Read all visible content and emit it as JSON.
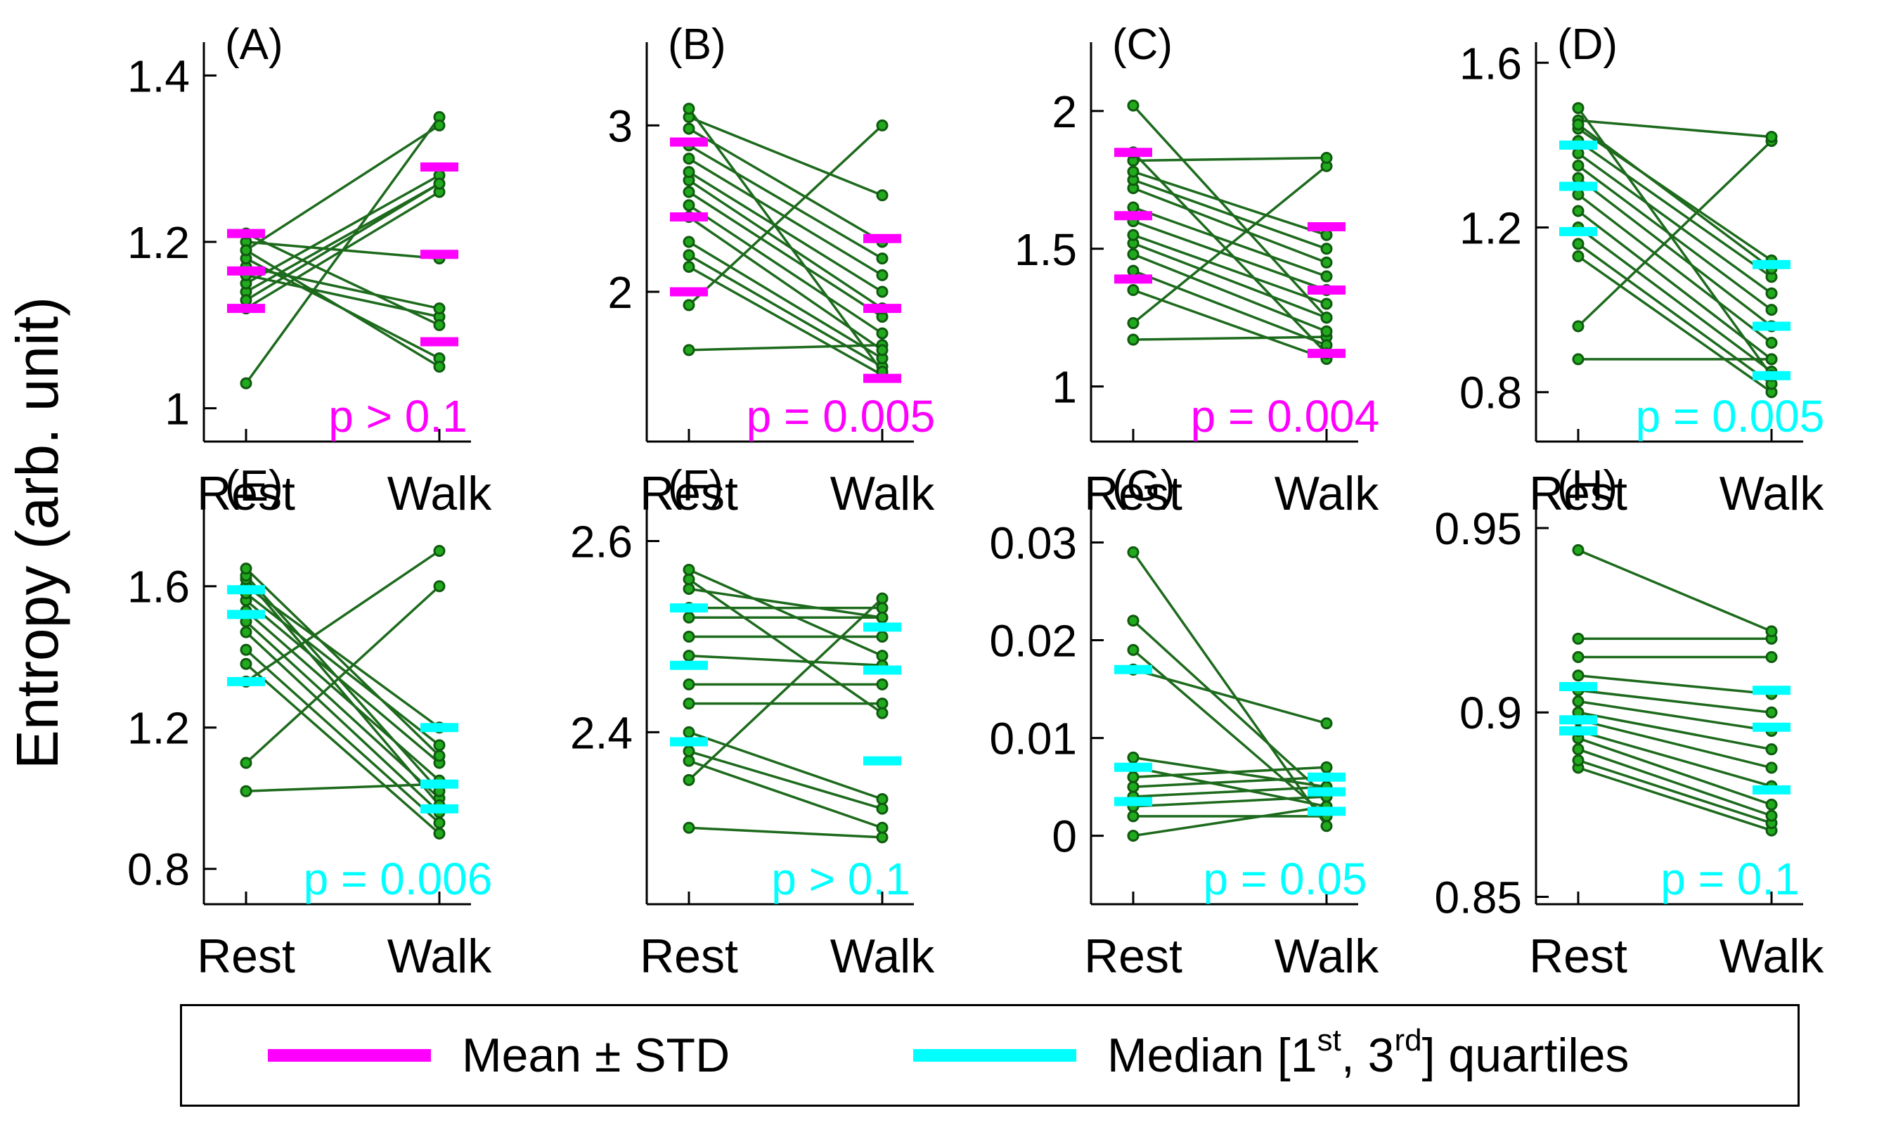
{
  "y_axis_label": "Entropy (arb. unit)",
  "colors": {
    "line": "#1d6a1d",
    "point_fill": "#22aa1e",
    "point_edge": "#0e5a0e",
    "mean": "#ff00ff",
    "median": "#00ffff"
  },
  "legend": {
    "mean_label": "Mean ± STD",
    "median_prefix": "Median [1",
    "median_sup1": "st",
    "median_mid": ", 3",
    "median_sup2": "rd",
    "median_suffix": "] quartiles"
  },
  "chart_data": [
    {
      "type": "scatter",
      "panel": "(A)",
      "categories": [
        "Rest",
        "Walk"
      ],
      "ylim": [
        0.96,
        1.44
      ],
      "yticks": [
        1,
        1.2,
        1.4
      ],
      "yticklabels": [
        "1",
        "1.2",
        "1.4"
      ],
      "rest": [
        1.03,
        1.12,
        1.14,
        1.15,
        1.16,
        1.17,
        1.18,
        1.19,
        1.2,
        1.21,
        1.19,
        1.13
      ],
      "walk": [
        1.35,
        1.26,
        1.27,
        1.28,
        1.11,
        1.12,
        1.06,
        1.05,
        1.18,
        1.1,
        1.34,
        1.27
      ],
      "summary": "mean",
      "rest_stats": [
        1.12,
        1.165,
        1.21
      ],
      "walk_stats": [
        1.08,
        1.185,
        1.29
      ],
      "pvalue": "p > 0.1"
    },
    {
      "type": "scatter",
      "panel": "(B)",
      "categories": [
        "Rest",
        "Walk"
      ],
      "ylim": [
        1.1,
        3.5
      ],
      "yticks": [
        2,
        3
      ],
      "yticklabels": [
        "2",
        "3"
      ],
      "rest": [
        1.65,
        1.92,
        2.15,
        2.22,
        2.3,
        2.45,
        2.52,
        2.6,
        2.67,
        2.72,
        2.8,
        2.88,
        2.98,
        3.05,
        3.1
      ],
      "walk": [
        1.68,
        3.0,
        1.5,
        1.55,
        1.6,
        1.65,
        1.75,
        1.85,
        1.9,
        2.0,
        2.1,
        2.2,
        2.3,
        2.58,
        1.52
      ],
      "summary": "mean",
      "rest_stats": [
        2.0,
        2.45,
        2.9
      ],
      "walk_stats": [
        1.48,
        1.9,
        2.32
      ],
      "pvalue": "p = 0.005"
    },
    {
      "type": "scatter",
      "panel": "(C)",
      "categories": [
        "Rest",
        "Walk"
      ],
      "ylim": [
        0.8,
        2.25
      ],
      "yticks": [
        1,
        1.5,
        2
      ],
      "yticklabels": [
        "1",
        "1.5",
        "2"
      ],
      "rest": [
        1.17,
        1.23,
        1.35,
        1.42,
        1.48,
        1.52,
        1.55,
        1.6,
        1.65,
        1.72,
        1.75,
        1.78,
        1.82,
        1.85,
        2.02
      ],
      "walk": [
        1.18,
        1.8,
        1.1,
        1.15,
        1.2,
        1.25,
        1.3,
        1.35,
        1.4,
        1.45,
        1.5,
        1.55,
        1.83,
        1.12,
        1.25
      ],
      "summary": "mean",
      "rest_stats": [
        1.39,
        1.62,
        1.85
      ],
      "walk_stats": [
        1.12,
        1.35,
        1.58
      ],
      "pvalue": "p = 0.004"
    },
    {
      "type": "scatter",
      "panel": "(D)",
      "categories": [
        "Rest",
        "Walk"
      ],
      "ylim": [
        0.68,
        1.65
      ],
      "yticks": [
        0.8,
        1.2,
        1.6
      ],
      "yticklabels": [
        "0.8",
        "1.2",
        "1.6"
      ],
      "rest": [
        0.88,
        0.96,
        1.13,
        1.16,
        1.2,
        1.24,
        1.28,
        1.32,
        1.35,
        1.38,
        1.41,
        1.44,
        1.46,
        1.49,
        1.45
      ],
      "walk": [
        0.88,
        1.41,
        0.8,
        0.82,
        0.85,
        0.88,
        0.92,
        0.96,
        1.0,
        1.04,
        1.08,
        1.12,
        1.42,
        0.84,
        1.1
      ],
      "summary": "median",
      "rest_stats": [
        1.19,
        1.3,
        1.4
      ],
      "walk_stats": [
        0.84,
        0.96,
        1.11
      ],
      "pvalue": "p = 0.005"
    },
    {
      "type": "scatter",
      "panel": "(E)",
      "categories": [
        "Rest",
        "Walk"
      ],
      "ylim": [
        0.7,
        1.89
      ],
      "yticks": [
        0.8,
        1.2,
        1.6
      ],
      "yticklabels": [
        "0.8",
        "1.2",
        "1.6"
      ],
      "rest": [
        1.02,
        1.1,
        1.33,
        1.38,
        1.42,
        1.47,
        1.5,
        1.53,
        1.56,
        1.58,
        1.6,
        1.62,
        1.63,
        1.65
      ],
      "walk": [
        1.04,
        1.6,
        1.7,
        0.9,
        0.93,
        0.96,
        1.0,
        1.05,
        1.1,
        1.15,
        1.2,
        0.98,
        1.02,
        1.12
      ],
      "summary": "median",
      "rest_stats": [
        1.33,
        1.52,
        1.59
      ],
      "walk_stats": [
        0.97,
        1.04,
        1.2
      ],
      "pvalue": "p = 0.006"
    },
    {
      "type": "scatter",
      "panel": "(F)",
      "categories": [
        "Rest",
        "Walk"
      ],
      "ylim": [
        2.22,
        2.66
      ],
      "yticks": [
        2.4,
        2.6
      ],
      "yticklabels": [
        "2.4",
        "2.6"
      ],
      "rest": [
        2.3,
        2.35,
        2.37,
        2.38,
        2.4,
        2.43,
        2.45,
        2.48,
        2.5,
        2.52,
        2.53,
        2.55,
        2.56,
        2.57
      ],
      "walk": [
        2.29,
        2.54,
        2.3,
        2.32,
        2.33,
        2.43,
        2.45,
        2.47,
        2.5,
        2.52,
        2.53,
        2.52,
        2.42,
        2.48
      ],
      "summary": "median",
      "rest_stats": [
        2.39,
        2.47,
        2.53
      ],
      "walk_stats": [
        2.37,
        2.465,
        2.51
      ],
      "pvalue": "p > 0.1"
    },
    {
      "type": "scatter",
      "panel": "(G)",
      "categories": [
        "Rest",
        "Walk"
      ],
      "ylim": [
        -0.007,
        0.036
      ],
      "yticks": [
        0,
        0.01,
        0.02,
        0.03
      ],
      "yticklabels": [
        "0",
        "0.01",
        "0.02",
        "0.03"
      ],
      "rest": [
        0.0,
        0.002,
        0.003,
        0.004,
        0.005,
        0.006,
        0.007,
        0.008,
        0.017,
        0.019,
        0.022,
        0.029
      ],
      "walk": [
        0.003,
        0.002,
        0.004,
        0.005,
        0.006,
        0.007,
        0.003,
        0.005,
        0.0115,
        0.002,
        0.004,
        0.001
      ],
      "summary": "median",
      "rest_stats": [
        0.0035,
        0.007,
        0.017
      ],
      "walk_stats": [
        0.0025,
        0.0045,
        0.006
      ],
      "pvalue": "p = 0.05"
    },
    {
      "type": "scatter",
      "panel": "(H)",
      "categories": [
        "Rest",
        "Walk"
      ],
      "ylim": [
        0.848,
        0.962
      ],
      "yticks": [
        0.85,
        0.9,
        0.95
      ],
      "yticklabels": [
        "0.85",
        "0.9",
        "0.95"
      ],
      "rest": [
        0.885,
        0.887,
        0.89,
        0.893,
        0.895,
        0.898,
        0.9,
        0.903,
        0.906,
        0.91,
        0.915,
        0.92,
        0.944
      ],
      "walk": [
        0.868,
        0.87,
        0.872,
        0.875,
        0.88,
        0.885,
        0.89,
        0.895,
        0.9,
        0.905,
        0.915,
        0.92,
        0.922
      ],
      "summary": "median",
      "rest_stats": [
        0.895,
        0.898,
        0.907
      ],
      "walk_stats": [
        0.879,
        0.896,
        0.906
      ],
      "pvalue": "p = 0.1"
    }
  ]
}
